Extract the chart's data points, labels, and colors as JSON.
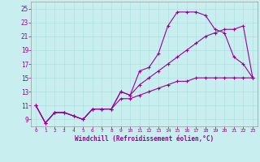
{
  "xlabel": "Windchill (Refroidissement éolien,°C)",
  "bg_color": "#c8eef0",
  "line_color": "#990099",
  "xlim": [
    -0.5,
    23.5
  ],
  "ylim": [
    8.0,
    26.0
  ],
  "xticks": [
    0,
    1,
    2,
    3,
    4,
    5,
    6,
    7,
    8,
    9,
    10,
    11,
    12,
    13,
    14,
    15,
    16,
    17,
    18,
    19,
    20,
    21,
    22,
    23
  ],
  "yticks": [
    9,
    11,
    13,
    15,
    17,
    19,
    21,
    23,
    25
  ],
  "line1_x": [
    0,
    1,
    2,
    3,
    4,
    5,
    6,
    7,
    8,
    9,
    10,
    11,
    12,
    13,
    14,
    15,
    16,
    17,
    18,
    19,
    20,
    21,
    22,
    23
  ],
  "line1_y": [
    11,
    8.5,
    10,
    10,
    9.5,
    9,
    10.5,
    10.5,
    10.5,
    13,
    12.5,
    16,
    16.5,
    18.5,
    22.5,
    24.5,
    24.5,
    24.5,
    24,
    22,
    21.5,
    18,
    17,
    15
  ],
  "line2_x": [
    0,
    1,
    2,
    3,
    4,
    5,
    6,
    7,
    8,
    9,
    10,
    11,
    12,
    13,
    14,
    15,
    16,
    17,
    18,
    19,
    20,
    21,
    22,
    23
  ],
  "line2_y": [
    11,
    8.5,
    10,
    10,
    9.5,
    9,
    10.5,
    10.5,
    10.5,
    13,
    12.5,
    14,
    15,
    16,
    17,
    18,
    19,
    20,
    21,
    21.5,
    22,
    22,
    22.5,
    15
  ],
  "line3_x": [
    0,
    1,
    2,
    3,
    4,
    5,
    6,
    7,
    8,
    9,
    10,
    11,
    12,
    13,
    14,
    15,
    16,
    17,
    18,
    19,
    20,
    21,
    22,
    23
  ],
  "line3_y": [
    11,
    8.5,
    10,
    10,
    9.5,
    9,
    10.5,
    10.5,
    10.5,
    12,
    12,
    12.5,
    13,
    13.5,
    14,
    14.5,
    14.5,
    15,
    15,
    15,
    15,
    15,
    15,
    15
  ]
}
